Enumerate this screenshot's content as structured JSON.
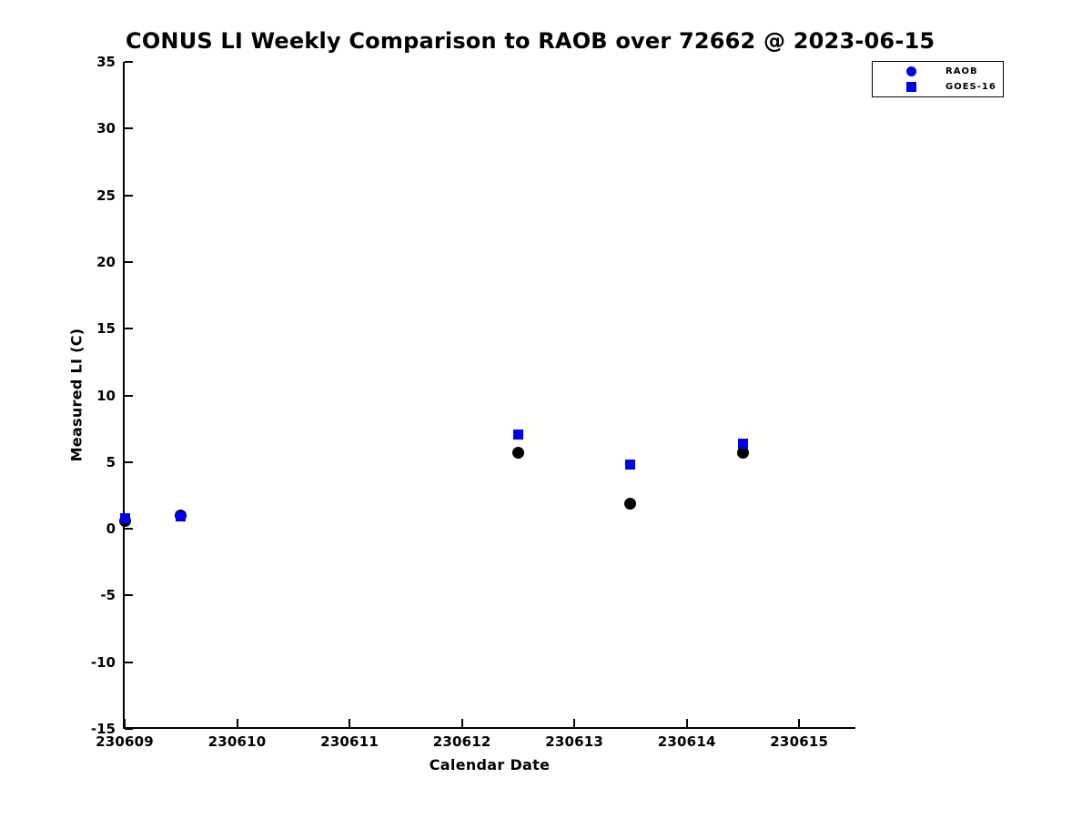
{
  "chart_data": {
    "type": "scatter",
    "title": "CONUS LI Weekly Comparison to RAOB over 72662 @ 2023-06-15",
    "xlabel": "Calendar Date",
    "ylabel": "Measured LI (C)",
    "xlim": [
      230609,
      230615.5
    ],
    "ylim": [
      -15,
      35
    ],
    "x_ticks": [
      230609,
      230610,
      230611,
      230612,
      230613,
      230614,
      230615
    ],
    "y_ticks": [
      35,
      30,
      25,
      20,
      15,
      10,
      5,
      0,
      -5,
      -10,
      -15
    ],
    "grid": false,
    "legend_position": "upper right",
    "series": [
      {
        "name": "RAOB",
        "marker": "circle",
        "plot_color": "#000000",
        "legend_color": "#0000ee",
        "points": [
          [
            230609,
            0.6
          ],
          [
            230609.5,
            1.0
          ],
          [
            230612.5,
            5.7
          ],
          [
            230613.5,
            1.9
          ],
          [
            230614.5,
            5.7
          ]
        ]
      },
      {
        "name": "GOES-16",
        "marker": "square",
        "plot_color": "#0000ee",
        "legend_color": "#0000ee",
        "points": [
          [
            230609,
            0.8
          ],
          [
            230609.5,
            0.9
          ],
          [
            230612.5,
            7.1
          ],
          [
            230613.5,
            4.8
          ],
          [
            230614.5,
            6.4
          ]
        ]
      }
    ]
  },
  "colors": {
    "series_blue": "#0000ee",
    "series_black": "#000000",
    "axis": "#000000",
    "background": "#ffffff"
  }
}
